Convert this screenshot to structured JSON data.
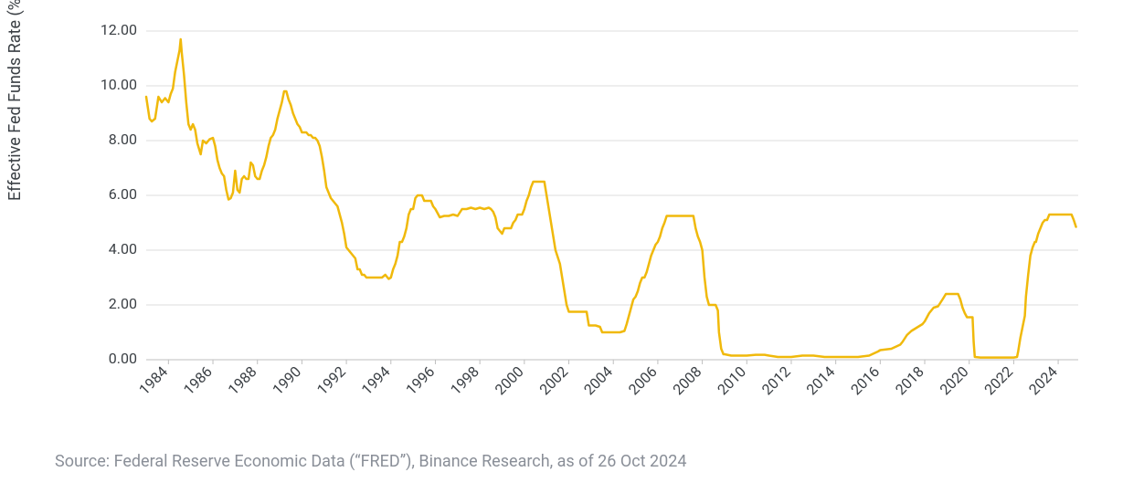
{
  "chart": {
    "type": "line",
    "ylabel": "Effective Fed Funds Rate (%)",
    "label_fontsize": 18,
    "tick_fontsize": 16,
    "background_color": "#ffffff",
    "grid_color": "#dcdcdc",
    "axis_color": "#bfbfbf",
    "text_color": "#3a3f44",
    "line_color": "#f0b90b",
    "line_width": 2.5,
    "ylim": [
      0,
      12
    ],
    "ytick_step": 2,
    "ytick_decimals": 2,
    "x_start_year": 1983.0,
    "x_end_year": 2024.9,
    "xtick_start": 1984,
    "xtick_end": 2024,
    "xtick_step": 2,
    "xtick_rotation_deg": -45,
    "series": [
      {
        "x": 1983.0,
        "y": 9.6
      },
      {
        "x": 1983.15,
        "y": 8.8
      },
      {
        "x": 1983.25,
        "y": 8.7
      },
      {
        "x": 1983.4,
        "y": 8.8
      },
      {
        "x": 1983.55,
        "y": 9.6
      },
      {
        "x": 1983.7,
        "y": 9.4
      },
      {
        "x": 1983.85,
        "y": 9.55
      },
      {
        "x": 1984.0,
        "y": 9.4
      },
      {
        "x": 1984.1,
        "y": 9.7
      },
      {
        "x": 1984.2,
        "y": 9.9
      },
      {
        "x": 1984.3,
        "y": 10.5
      },
      {
        "x": 1984.4,
        "y": 10.9
      },
      {
        "x": 1984.5,
        "y": 11.3
      },
      {
        "x": 1984.55,
        "y": 11.7
      },
      {
        "x": 1984.6,
        "y": 11.2
      },
      {
        "x": 1984.7,
        "y": 10.4
      },
      {
        "x": 1984.8,
        "y": 9.4
      },
      {
        "x": 1984.9,
        "y": 8.6
      },
      {
        "x": 1985.0,
        "y": 8.4
      },
      {
        "x": 1985.1,
        "y": 8.6
      },
      {
        "x": 1985.2,
        "y": 8.4
      },
      {
        "x": 1985.3,
        "y": 7.9
      },
      {
        "x": 1985.45,
        "y": 7.5
      },
      {
        "x": 1985.55,
        "y": 8.0
      },
      {
        "x": 1985.7,
        "y": 7.9
      },
      {
        "x": 1985.85,
        "y": 8.05
      },
      {
        "x": 1986.0,
        "y": 8.1
      },
      {
        "x": 1986.1,
        "y": 7.8
      },
      {
        "x": 1986.2,
        "y": 7.3
      },
      {
        "x": 1986.3,
        "y": 7.0
      },
      {
        "x": 1986.4,
        "y": 6.8
      },
      {
        "x": 1986.5,
        "y": 6.7
      },
      {
        "x": 1986.6,
        "y": 6.2
      },
      {
        "x": 1986.7,
        "y": 5.85
      },
      {
        "x": 1986.8,
        "y": 5.9
      },
      {
        "x": 1986.9,
        "y": 6.1
      },
      {
        "x": 1987.0,
        "y": 6.9
      },
      {
        "x": 1987.1,
        "y": 6.2
      },
      {
        "x": 1987.2,
        "y": 6.1
      },
      {
        "x": 1987.3,
        "y": 6.6
      },
      {
        "x": 1987.4,
        "y": 6.7
      },
      {
        "x": 1987.5,
        "y": 6.6
      },
      {
        "x": 1987.6,
        "y": 6.6
      },
      {
        "x": 1987.7,
        "y": 7.2
      },
      {
        "x": 1987.8,
        "y": 7.1
      },
      {
        "x": 1987.9,
        "y": 6.7
      },
      {
        "x": 1988.0,
        "y": 6.6
      },
      {
        "x": 1988.1,
        "y": 6.6
      },
      {
        "x": 1988.2,
        "y": 6.9
      },
      {
        "x": 1988.3,
        "y": 7.1
      },
      {
        "x": 1988.4,
        "y": 7.4
      },
      {
        "x": 1988.5,
        "y": 7.8
      },
      {
        "x": 1988.6,
        "y": 8.1
      },
      {
        "x": 1988.7,
        "y": 8.2
      },
      {
        "x": 1988.8,
        "y": 8.4
      },
      {
        "x": 1988.9,
        "y": 8.8
      },
      {
        "x": 1989.0,
        "y": 9.1
      },
      {
        "x": 1989.1,
        "y": 9.4
      },
      {
        "x": 1989.2,
        "y": 9.8
      },
      {
        "x": 1989.3,
        "y": 9.8
      },
      {
        "x": 1989.4,
        "y": 9.5
      },
      {
        "x": 1989.5,
        "y": 9.3
      },
      {
        "x": 1989.6,
        "y": 9.0
      },
      {
        "x": 1989.7,
        "y": 8.8
      },
      {
        "x": 1989.8,
        "y": 8.6
      },
      {
        "x": 1989.9,
        "y": 8.5
      },
      {
        "x": 1990.0,
        "y": 8.3
      },
      {
        "x": 1990.1,
        "y": 8.3
      },
      {
        "x": 1990.2,
        "y": 8.3
      },
      {
        "x": 1990.3,
        "y": 8.2
      },
      {
        "x": 1990.4,
        "y": 8.2
      },
      {
        "x": 1990.5,
        "y": 8.1
      },
      {
        "x": 1990.6,
        "y": 8.1
      },
      {
        "x": 1990.7,
        "y": 8.0
      },
      {
        "x": 1990.8,
        "y": 7.8
      },
      {
        "x": 1990.9,
        "y": 7.4
      },
      {
        "x": 1991.0,
        "y": 6.9
      },
      {
        "x": 1991.1,
        "y": 6.3
      },
      {
        "x": 1991.2,
        "y": 6.1
      },
      {
        "x": 1991.3,
        "y": 5.9
      },
      {
        "x": 1991.4,
        "y": 5.8
      },
      {
        "x": 1991.5,
        "y": 5.7
      },
      {
        "x": 1991.6,
        "y": 5.6
      },
      {
        "x": 1991.7,
        "y": 5.3
      },
      {
        "x": 1991.8,
        "y": 5.0
      },
      {
        "x": 1991.9,
        "y": 4.6
      },
      {
        "x": 1992.0,
        "y": 4.1
      },
      {
        "x": 1992.1,
        "y": 4.0
      },
      {
        "x": 1992.2,
        "y": 3.9
      },
      {
        "x": 1992.3,
        "y": 3.8
      },
      {
        "x": 1992.4,
        "y": 3.7
      },
      {
        "x": 1992.5,
        "y": 3.3
      },
      {
        "x": 1992.6,
        "y": 3.3
      },
      {
        "x": 1992.7,
        "y": 3.1
      },
      {
        "x": 1992.8,
        "y": 3.1
      },
      {
        "x": 1992.9,
        "y": 3.0
      },
      {
        "x": 1993.0,
        "y": 3.0
      },
      {
        "x": 1993.2,
        "y": 3.0
      },
      {
        "x": 1993.4,
        "y": 3.0
      },
      {
        "x": 1993.6,
        "y": 3.0
      },
      {
        "x": 1993.75,
        "y": 3.1
      },
      {
        "x": 1993.9,
        "y": 2.95
      },
      {
        "x": 1994.0,
        "y": 3.0
      },
      {
        "x": 1994.1,
        "y": 3.3
      },
      {
        "x": 1994.2,
        "y": 3.5
      },
      {
        "x": 1994.3,
        "y": 3.8
      },
      {
        "x": 1994.4,
        "y": 4.3
      },
      {
        "x": 1994.5,
        "y": 4.3
      },
      {
        "x": 1994.6,
        "y": 4.5
      },
      {
        "x": 1994.7,
        "y": 4.8
      },
      {
        "x": 1994.8,
        "y": 5.3
      },
      {
        "x": 1994.9,
        "y": 5.5
      },
      {
        "x": 1995.0,
        "y": 5.5
      },
      {
        "x": 1995.1,
        "y": 5.9
      },
      {
        "x": 1995.2,
        "y": 6.0
      },
      {
        "x": 1995.3,
        "y": 6.0
      },
      {
        "x": 1995.4,
        "y": 6.0
      },
      {
        "x": 1995.5,
        "y": 5.8
      },
      {
        "x": 1995.6,
        "y": 5.8
      },
      {
        "x": 1995.7,
        "y": 5.8
      },
      {
        "x": 1995.8,
        "y": 5.8
      },
      {
        "x": 1995.9,
        "y": 5.6
      },
      {
        "x": 1996.0,
        "y": 5.5
      },
      {
        "x": 1996.2,
        "y": 5.2
      },
      {
        "x": 1996.4,
        "y": 5.25
      },
      {
        "x": 1996.6,
        "y": 5.25
      },
      {
        "x": 1996.8,
        "y": 5.3
      },
      {
        "x": 1997.0,
        "y": 5.25
      },
      {
        "x": 1997.2,
        "y": 5.5
      },
      {
        "x": 1997.4,
        "y": 5.5
      },
      {
        "x": 1997.6,
        "y": 5.55
      },
      {
        "x": 1997.8,
        "y": 5.5
      },
      {
        "x": 1998.0,
        "y": 5.55
      },
      {
        "x": 1998.2,
        "y": 5.5
      },
      {
        "x": 1998.4,
        "y": 5.55
      },
      {
        "x": 1998.5,
        "y": 5.5
      },
      {
        "x": 1998.6,
        "y": 5.4
      },
      {
        "x": 1998.7,
        "y": 5.2
      },
      {
        "x": 1998.8,
        "y": 4.8
      },
      {
        "x": 1998.9,
        "y": 4.7
      },
      {
        "x": 1999.0,
        "y": 4.6
      },
      {
        "x": 1999.1,
        "y": 4.8
      },
      {
        "x": 1999.2,
        "y": 4.8
      },
      {
        "x": 1999.3,
        "y": 4.8
      },
      {
        "x": 1999.4,
        "y": 4.8
      },
      {
        "x": 1999.5,
        "y": 5.0
      },
      {
        "x": 1999.6,
        "y": 5.1
      },
      {
        "x": 1999.7,
        "y": 5.3
      },
      {
        "x": 1999.8,
        "y": 5.3
      },
      {
        "x": 1999.9,
        "y": 5.3
      },
      {
        "x": 2000.0,
        "y": 5.5
      },
      {
        "x": 2000.1,
        "y": 5.8
      },
      {
        "x": 2000.2,
        "y": 6.0
      },
      {
        "x": 2000.3,
        "y": 6.3
      },
      {
        "x": 2000.4,
        "y": 6.5
      },
      {
        "x": 2000.5,
        "y": 6.5
      },
      {
        "x": 2000.6,
        "y": 6.5
      },
      {
        "x": 2000.7,
        "y": 6.5
      },
      {
        "x": 2000.8,
        "y": 6.5
      },
      {
        "x": 2000.9,
        "y": 6.5
      },
      {
        "x": 2001.0,
        "y": 6.0
      },
      {
        "x": 2001.1,
        "y": 5.5
      },
      {
        "x": 2001.2,
        "y": 5.0
      },
      {
        "x": 2001.3,
        "y": 4.5
      },
      {
        "x": 2001.4,
        "y": 4.0
      },
      {
        "x": 2001.5,
        "y": 3.75
      },
      {
        "x": 2001.6,
        "y": 3.5
      },
      {
        "x": 2001.7,
        "y": 3.0
      },
      {
        "x": 2001.8,
        "y": 2.5
      },
      {
        "x": 2001.9,
        "y": 2.0
      },
      {
        "x": 2002.0,
        "y": 1.75
      },
      {
        "x": 2002.2,
        "y": 1.75
      },
      {
        "x": 2002.4,
        "y": 1.75
      },
      {
        "x": 2002.6,
        "y": 1.75
      },
      {
        "x": 2002.8,
        "y": 1.75
      },
      {
        "x": 2002.9,
        "y": 1.25
      },
      {
        "x": 2003.0,
        "y": 1.25
      },
      {
        "x": 2003.2,
        "y": 1.25
      },
      {
        "x": 2003.4,
        "y": 1.2
      },
      {
        "x": 2003.5,
        "y": 1.0
      },
      {
        "x": 2003.7,
        "y": 1.0
      },
      {
        "x": 2004.0,
        "y": 1.0
      },
      {
        "x": 2004.3,
        "y": 1.0
      },
      {
        "x": 2004.5,
        "y": 1.05
      },
      {
        "x": 2004.6,
        "y": 1.3
      },
      {
        "x": 2004.7,
        "y": 1.6
      },
      {
        "x": 2004.8,
        "y": 1.9
      },
      {
        "x": 2004.9,
        "y": 2.2
      },
      {
        "x": 2005.0,
        "y": 2.3
      },
      {
        "x": 2005.1,
        "y": 2.5
      },
      {
        "x": 2005.2,
        "y": 2.8
      },
      {
        "x": 2005.3,
        "y": 3.0
      },
      {
        "x": 2005.4,
        "y": 3.0
      },
      {
        "x": 2005.5,
        "y": 3.2
      },
      {
        "x": 2005.6,
        "y": 3.5
      },
      {
        "x": 2005.7,
        "y": 3.8
      },
      {
        "x": 2005.8,
        "y": 4.0
      },
      {
        "x": 2005.9,
        "y": 4.2
      },
      {
        "x": 2006.0,
        "y": 4.3
      },
      {
        "x": 2006.1,
        "y": 4.5
      },
      {
        "x": 2006.2,
        "y": 4.8
      },
      {
        "x": 2006.3,
        "y": 5.0
      },
      {
        "x": 2006.4,
        "y": 5.25
      },
      {
        "x": 2006.5,
        "y": 5.25
      },
      {
        "x": 2006.7,
        "y": 5.25
      },
      {
        "x": 2007.0,
        "y": 5.25
      },
      {
        "x": 2007.3,
        "y": 5.25
      },
      {
        "x": 2007.5,
        "y": 5.25
      },
      {
        "x": 2007.6,
        "y": 5.25
      },
      {
        "x": 2007.7,
        "y": 4.8
      },
      {
        "x": 2007.8,
        "y": 4.5
      },
      {
        "x": 2007.9,
        "y": 4.3
      },
      {
        "x": 2008.0,
        "y": 4.0
      },
      {
        "x": 2008.1,
        "y": 3.0
      },
      {
        "x": 2008.2,
        "y": 2.3
      },
      {
        "x": 2008.3,
        "y": 2.0
      },
      {
        "x": 2008.4,
        "y": 2.0
      },
      {
        "x": 2008.5,
        "y": 2.0
      },
      {
        "x": 2008.6,
        "y": 2.0
      },
      {
        "x": 2008.7,
        "y": 1.8
      },
      {
        "x": 2008.75,
        "y": 1.0
      },
      {
        "x": 2008.85,
        "y": 0.4
      },
      {
        "x": 2008.95,
        "y": 0.2
      },
      {
        "x": 2009.0,
        "y": 0.2
      },
      {
        "x": 2009.3,
        "y": 0.15
      },
      {
        "x": 2009.6,
        "y": 0.15
      },
      {
        "x": 2010.0,
        "y": 0.15
      },
      {
        "x": 2010.4,
        "y": 0.18
      },
      {
        "x": 2010.8,
        "y": 0.18
      },
      {
        "x": 2011.0,
        "y": 0.15
      },
      {
        "x": 2011.4,
        "y": 0.1
      },
      {
        "x": 2011.8,
        "y": 0.1
      },
      {
        "x": 2012.0,
        "y": 0.1
      },
      {
        "x": 2012.5,
        "y": 0.15
      },
      {
        "x": 2013.0,
        "y": 0.15
      },
      {
        "x": 2013.5,
        "y": 0.1
      },
      {
        "x": 2014.0,
        "y": 0.1
      },
      {
        "x": 2014.5,
        "y": 0.1
      },
      {
        "x": 2015.0,
        "y": 0.1
      },
      {
        "x": 2015.5,
        "y": 0.15
      },
      {
        "x": 2015.9,
        "y": 0.3
      },
      {
        "x": 2016.0,
        "y": 0.35
      },
      {
        "x": 2016.5,
        "y": 0.4
      },
      {
        "x": 2016.9,
        "y": 0.55
      },
      {
        "x": 2017.0,
        "y": 0.65
      },
      {
        "x": 2017.2,
        "y": 0.9
      },
      {
        "x": 2017.4,
        "y": 1.05
      },
      {
        "x": 2017.6,
        "y": 1.15
      },
      {
        "x": 2017.9,
        "y": 1.3
      },
      {
        "x": 2018.0,
        "y": 1.4
      },
      {
        "x": 2018.2,
        "y": 1.7
      },
      {
        "x": 2018.4,
        "y": 1.9
      },
      {
        "x": 2018.6,
        "y": 1.95
      },
      {
        "x": 2018.8,
        "y": 2.2
      },
      {
        "x": 2018.95,
        "y": 2.4
      },
      {
        "x": 2019.1,
        "y": 2.4
      },
      {
        "x": 2019.3,
        "y": 2.4
      },
      {
        "x": 2019.5,
        "y": 2.4
      },
      {
        "x": 2019.6,
        "y": 2.2
      },
      {
        "x": 2019.7,
        "y": 1.9
      },
      {
        "x": 2019.8,
        "y": 1.7
      },
      {
        "x": 2019.9,
        "y": 1.55
      },
      {
        "x": 2020.0,
        "y": 1.55
      },
      {
        "x": 2020.15,
        "y": 1.55
      },
      {
        "x": 2020.2,
        "y": 0.65
      },
      {
        "x": 2020.25,
        "y": 0.1
      },
      {
        "x": 2020.5,
        "y": 0.08
      },
      {
        "x": 2021.0,
        "y": 0.08
      },
      {
        "x": 2021.5,
        "y": 0.08
      },
      {
        "x": 2022.0,
        "y": 0.08
      },
      {
        "x": 2022.15,
        "y": 0.1
      },
      {
        "x": 2022.2,
        "y": 0.3
      },
      {
        "x": 2022.3,
        "y": 0.8
      },
      {
        "x": 2022.4,
        "y": 1.2
      },
      {
        "x": 2022.5,
        "y": 1.6
      },
      {
        "x": 2022.55,
        "y": 2.3
      },
      {
        "x": 2022.65,
        "y": 3.1
      },
      {
        "x": 2022.75,
        "y": 3.8
      },
      {
        "x": 2022.85,
        "y": 4.1
      },
      {
        "x": 2022.95,
        "y": 4.3
      },
      {
        "x": 2023.0,
        "y": 4.3
      },
      {
        "x": 2023.1,
        "y": 4.6
      },
      {
        "x": 2023.2,
        "y": 4.8
      },
      {
        "x": 2023.3,
        "y": 5.0
      },
      {
        "x": 2023.4,
        "y": 5.1
      },
      {
        "x": 2023.5,
        "y": 5.1
      },
      {
        "x": 2023.6,
        "y": 5.3
      },
      {
        "x": 2023.7,
        "y": 5.3
      },
      {
        "x": 2023.8,
        "y": 5.3
      },
      {
        "x": 2024.0,
        "y": 5.3
      },
      {
        "x": 2024.2,
        "y": 5.3
      },
      {
        "x": 2024.4,
        "y": 5.3
      },
      {
        "x": 2024.6,
        "y": 5.3
      },
      {
        "x": 2024.7,
        "y": 5.1
      },
      {
        "x": 2024.8,
        "y": 4.85
      }
    ]
  },
  "source_note": "Source: Federal Reserve Economic Data (“FRED”), Binance Research, as of 26 Oct 2024",
  "source_color": "#8a8f98",
  "source_fontsize": 18
}
